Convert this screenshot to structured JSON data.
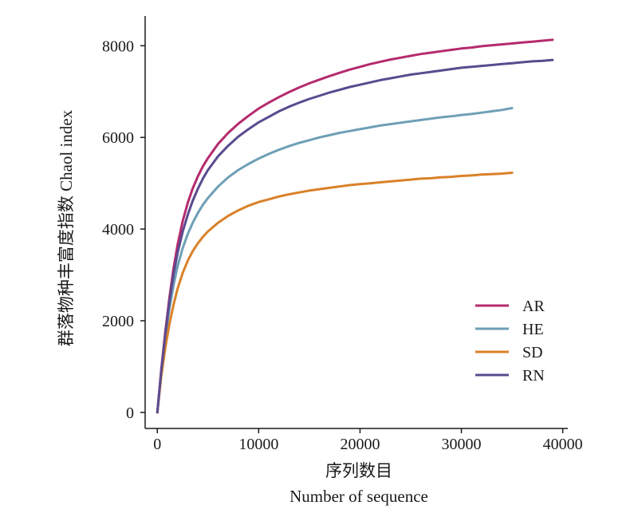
{
  "chart_data": {
    "type": "line",
    "xlabel_cn": "序列数目",
    "xlabel_en": "Number of sequence",
    "ylabel": "群落物种丰富度指数  Chaol index",
    "xlim": [
      -1200,
      40500
    ],
    "ylim": [
      -350,
      8650
    ],
    "xticks": [
      0,
      10000,
      20000,
      30000,
      40000
    ],
    "yticks": [
      0,
      2000,
      4000,
      6000,
      8000
    ],
    "legend_position": "lower-right",
    "series": [
      {
        "name": "AR",
        "color": "#b52b6e",
        "x": [
          0,
          400,
          800,
          1200,
          1600,
          2000,
          2500,
          3000,
          3500,
          4000,
          4500,
          5000,
          6000,
          7000,
          8000,
          9000,
          10000,
          11000,
          12000,
          13000,
          14000,
          15000,
          16000,
          17000,
          18000,
          19000,
          20000,
          21000,
          22000,
          23000,
          24000,
          25000,
          26000,
          27000,
          28000,
          29000,
          30000,
          31000,
          32000,
          33000,
          34000,
          35000,
          36000,
          37000,
          38000,
          39000
        ],
        "y": [
          0,
          950,
          1780,
          2510,
          3140,
          3660,
          4170,
          4570,
          4890,
          5150,
          5370,
          5550,
          5860,
          6100,
          6300,
          6470,
          6630,
          6760,
          6880,
          6990,
          7090,
          7180,
          7260,
          7340,
          7410,
          7480,
          7540,
          7600,
          7650,
          7700,
          7740,
          7780,
          7820,
          7850,
          7880,
          7910,
          7940,
          7960,
          7990,
          8010,
          8030,
          8050,
          8070,
          8090,
          8110,
          8130
        ]
      },
      {
        "name": "HE",
        "color": "#6e9fb6",
        "x": [
          0,
          400,
          800,
          1200,
          1600,
          2000,
          2500,
          3000,
          3500,
          4000,
          4500,
          5000,
          6000,
          7000,
          8000,
          9000,
          10000,
          11000,
          12000,
          13000,
          14000,
          15000,
          16000,
          17000,
          18000,
          19000,
          20000,
          21000,
          22000,
          23000,
          24000,
          25000,
          26000,
          27000,
          28000,
          29000,
          30000,
          31000,
          32000,
          33000,
          34000,
          35000
        ],
        "y": [
          0,
          900,
          1650,
          2270,
          2780,
          3190,
          3580,
          3890,
          4140,
          4350,
          4530,
          4680,
          4930,
          5130,
          5290,
          5420,
          5540,
          5640,
          5730,
          5810,
          5880,
          5940,
          6000,
          6050,
          6100,
          6140,
          6180,
          6220,
          6260,
          6290,
          6320,
          6350,
          6380,
          6410,
          6440,
          6460,
          6490,
          6510,
          6540,
          6570,
          6600,
          6640
        ]
      },
      {
        "name": "SD",
        "color": "#d98128",
        "x": [
          0,
          400,
          800,
          1200,
          1600,
          2000,
          2500,
          3000,
          3500,
          4000,
          4500,
          5000,
          6000,
          7000,
          8000,
          9000,
          10000,
          11000,
          12000,
          13000,
          14000,
          15000,
          16000,
          17000,
          18000,
          19000,
          20000,
          21000,
          22000,
          23000,
          24000,
          25000,
          26000,
          27000,
          28000,
          29000,
          30000,
          31000,
          32000,
          33000,
          34000,
          35000
        ],
        "y": [
          0,
          800,
          1420,
          1930,
          2350,
          2700,
          3040,
          3310,
          3520,
          3690,
          3830,
          3950,
          4140,
          4290,
          4410,
          4510,
          4590,
          4650,
          4710,
          4760,
          4800,
          4840,
          4870,
          4900,
          4930,
          4960,
          4980,
          5000,
          5020,
          5040,
          5060,
          5080,
          5100,
          5110,
          5130,
          5140,
          5160,
          5170,
          5190,
          5200,
          5210,
          5230
        ]
      },
      {
        "name": "RN",
        "color": "#5a4b8f",
        "x": [
          0,
          400,
          800,
          1200,
          1600,
          2000,
          2500,
          3000,
          3500,
          4000,
          4500,
          5000,
          6000,
          7000,
          8000,
          9000,
          10000,
          11000,
          12000,
          13000,
          14000,
          15000,
          16000,
          17000,
          18000,
          19000,
          20000,
          21000,
          22000,
          23000,
          24000,
          25000,
          26000,
          27000,
          28000,
          29000,
          30000,
          31000,
          32000,
          33000,
          34000,
          35000,
          36000,
          37000,
          38000,
          39000
        ],
        "y": [
          0,
          920,
          1720,
          2420,
          3010,
          3480,
          3940,
          4310,
          4620,
          4880,
          5100,
          5290,
          5590,
          5820,
          6020,
          6180,
          6330,
          6450,
          6570,
          6670,
          6760,
          6840,
          6910,
          6980,
          7040,
          7100,
          7150,
          7200,
          7250,
          7290,
          7330,
          7370,
          7400,
          7430,
          7460,
          7490,
          7520,
          7540,
          7560,
          7580,
          7600,
          7620,
          7640,
          7660,
          7670,
          7690
        ]
      }
    ]
  }
}
